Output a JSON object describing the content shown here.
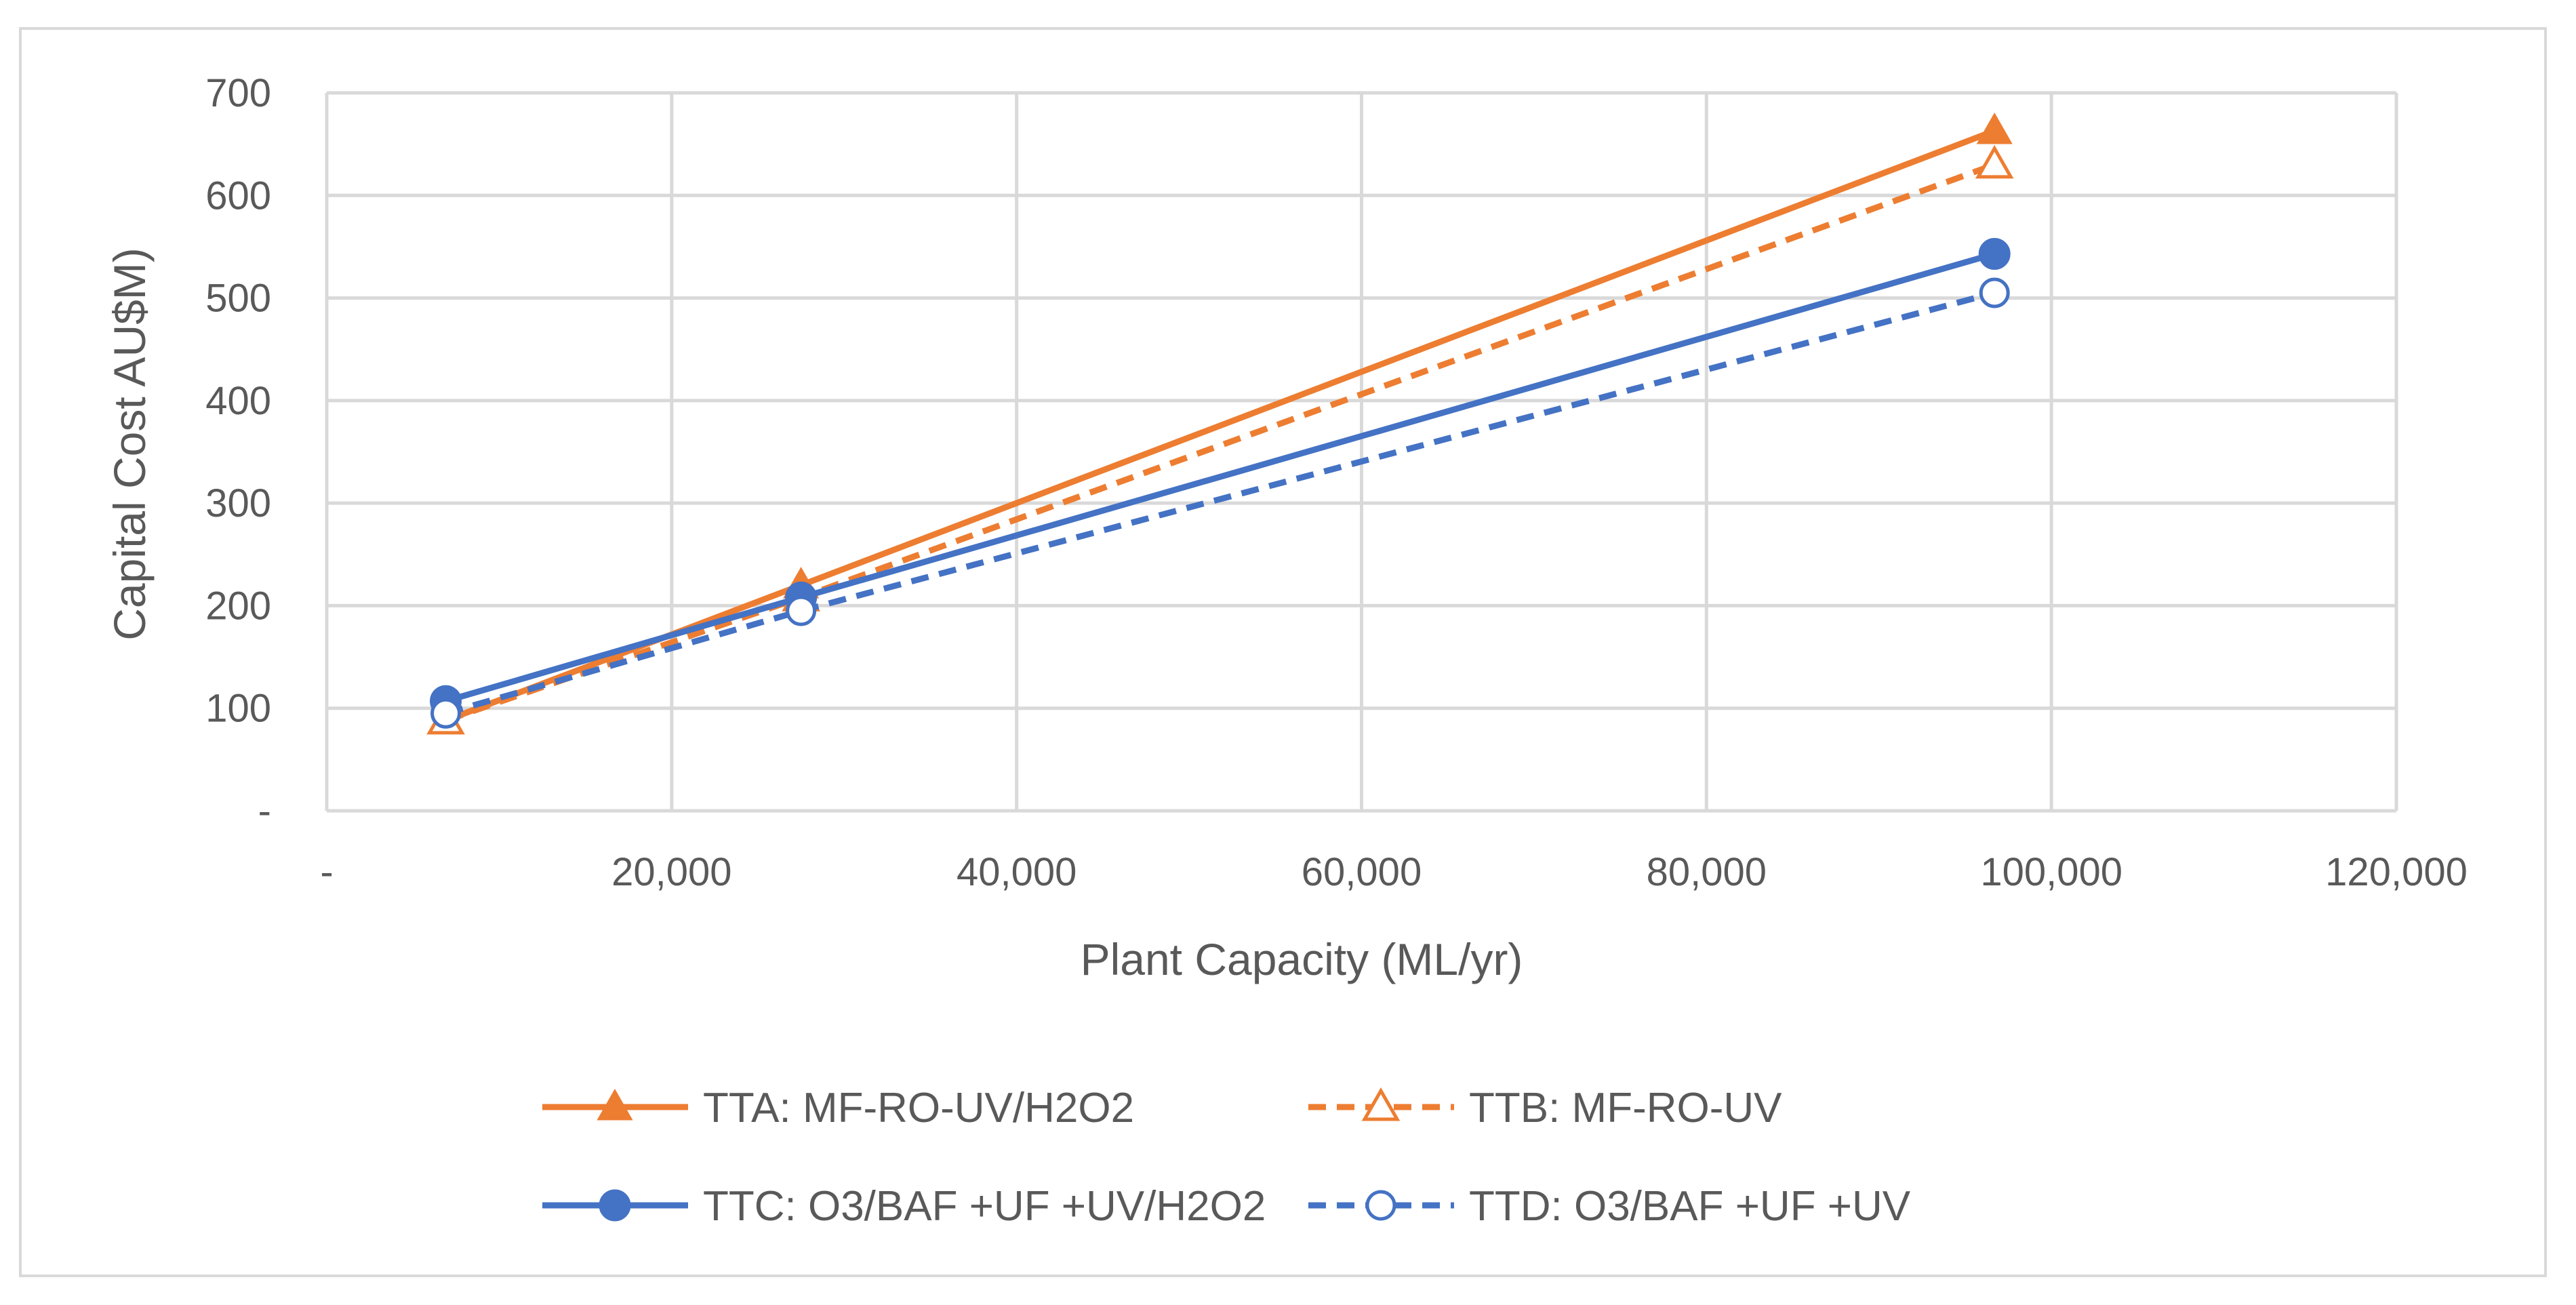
{
  "chart_data": {
    "type": "line",
    "title": "",
    "xlabel": "Plant Capacity (ML/yr)",
    "ylabel": "Capital Cost AU$M)",
    "xlim": [
      0,
      120000
    ],
    "ylim": [
      0,
      700
    ],
    "xticks": [
      0,
      20000,
      40000,
      60000,
      80000,
      100000,
      120000
    ],
    "xtick_labels": [
      "-",
      "20,000",
      "40,000",
      "60,000",
      "80,000",
      "100,000",
      "120,000"
    ],
    "yticks": [
      0,
      100,
      200,
      300,
      400,
      500,
      600,
      700
    ],
    "ytick_labels": [
      "-",
      "100",
      "200",
      "300",
      "400",
      "500",
      "600",
      "700"
    ],
    "grid": true,
    "legend_position": "bottom",
    "series": [
      {
        "name": "TTA: MF-RO-UV/H2O2",
        "color": "#ED7D31",
        "dashed": false,
        "marker": "triangle",
        "filled": true,
        "x": [
          6900,
          27500,
          96700
        ],
        "values": [
          88,
          220,
          663
        ]
      },
      {
        "name": "TTB: MF-RO-UV",
        "color": "#ED7D31",
        "dashed": true,
        "marker": "triangle",
        "filled": false,
        "x": [
          6900,
          27500,
          96700
        ],
        "values": [
          88,
          208,
          630
        ]
      },
      {
        "name": "TTC: O3/BAF +UF +UV/H2O2",
        "color": "#4472C4",
        "dashed": false,
        "marker": "circle",
        "filled": true,
        "x": [
          6900,
          27500,
          96700
        ],
        "values": [
          107,
          208,
          543
        ]
      },
      {
        "name": "TTD: O3/BAF +UF +UV",
        "color": "#4472C4",
        "dashed": true,
        "marker": "circle",
        "filled": false,
        "x": [
          6900,
          27500,
          96700
        ],
        "values": [
          95,
          195,
          505
        ]
      }
    ]
  }
}
